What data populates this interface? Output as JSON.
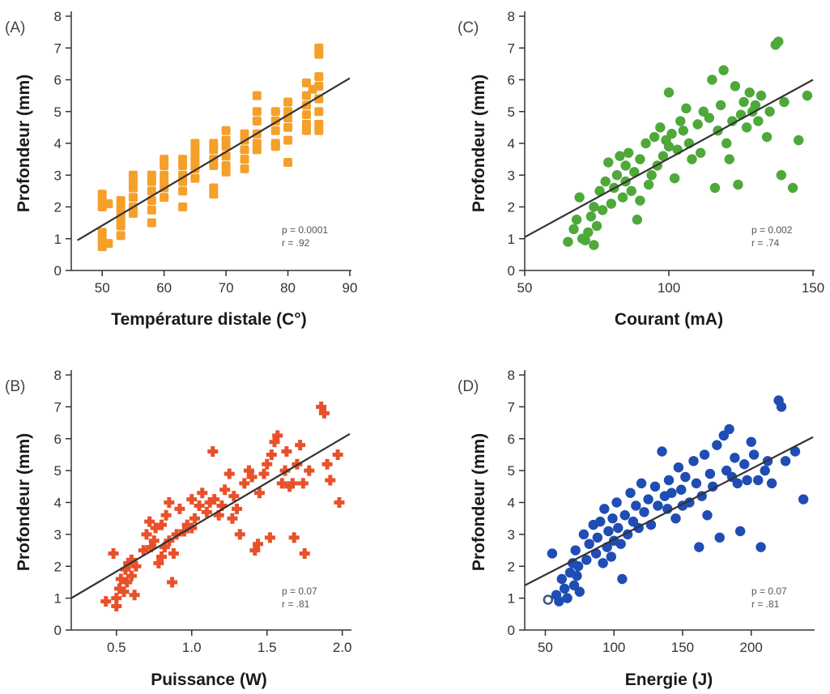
{
  "chart_data": [
    {
      "panel": "(A)",
      "type": "scatter",
      "marker": "square",
      "color": "#f5a02a",
      "xlabel": "Température distale (C°)",
      "ylabel": "Profondeur (mm)",
      "xlim": [
        45,
        90
      ],
      "ylim": [
        0,
        8
      ],
      "xticks": [
        50,
        60,
        70,
        80,
        90
      ],
      "yticks": [
        0,
        1,
        2,
        3,
        4,
        5,
        6,
        7,
        8
      ],
      "stats": [
        "p = 0.0001",
        "r = .92"
      ],
      "fit": {
        "x": [
          46,
          90
        ],
        "y": [
          0.95,
          6.05
        ]
      },
      "points": [
        [
          50,
          0.75
        ],
        [
          50,
          1.0
        ],
        [
          50,
          1.2
        ],
        [
          50,
          2.0
        ],
        [
          50,
          2.2
        ],
        [
          50,
          2.4
        ],
        [
          51,
          0.85
        ],
        [
          51,
          2.1
        ],
        [
          53,
          1.4
        ],
        [
          53,
          1.6
        ],
        [
          53,
          1.8
        ],
        [
          53,
          2.0
        ],
        [
          53,
          2.2
        ],
        [
          53,
          1.1
        ],
        [
          55,
          2.0
        ],
        [
          55,
          2.3
        ],
        [
          55,
          2.6
        ],
        [
          55,
          2.8
        ],
        [
          55,
          3.0
        ],
        [
          55,
          1.8
        ],
        [
          58,
          1.5
        ],
        [
          58,
          1.9
        ],
        [
          58,
          2.2
        ],
        [
          58,
          2.5
        ],
        [
          58,
          2.8
        ],
        [
          58,
          3.0
        ],
        [
          60,
          2.3
        ],
        [
          60,
          2.6
        ],
        [
          60,
          2.8
        ],
        [
          60,
          3.0
        ],
        [
          60,
          3.3
        ],
        [
          60,
          3.5
        ],
        [
          63,
          2.5
        ],
        [
          63,
          2.8
        ],
        [
          63,
          3.0
        ],
        [
          63,
          3.3
        ],
        [
          63,
          3.5
        ],
        [
          63,
          2.0
        ],
        [
          65,
          2.9
        ],
        [
          65,
          3.2
        ],
        [
          65,
          3.4
        ],
        [
          65,
          3.6
        ],
        [
          65,
          3.8
        ],
        [
          65,
          4.0
        ],
        [
          68,
          2.4
        ],
        [
          68,
          2.6
        ],
        [
          68,
          3.3
        ],
        [
          68,
          3.5
        ],
        [
          68,
          3.8
        ],
        [
          68,
          4.0
        ],
        [
          70,
          3.3
        ],
        [
          70,
          3.6
        ],
        [
          70,
          3.9
        ],
        [
          70,
          4.1
        ],
        [
          70,
          4.4
        ],
        [
          70,
          3.1
        ],
        [
          73,
          3.5
        ],
        [
          73,
          3.8
        ],
        [
          73,
          4.1
        ],
        [
          73,
          4.3
        ],
        [
          73,
          3.2
        ],
        [
          75,
          3.8
        ],
        [
          75,
          4.0
        ],
        [
          75,
          4.3
        ],
        [
          75,
          4.7
        ],
        [
          75,
          5.0
        ],
        [
          75,
          5.5
        ],
        [
          78,
          4.0
        ],
        [
          78,
          4.4
        ],
        [
          78,
          4.7
        ],
        [
          78,
          5.0
        ],
        [
          78,
          3.9
        ],
        [
          80,
          3.4
        ],
        [
          80,
          4.5
        ],
        [
          80,
          4.8
        ],
        [
          80,
          5.0
        ],
        [
          80,
          5.3
        ],
        [
          80,
          4.1
        ],
        [
          83,
          4.6
        ],
        [
          83,
          4.9
        ],
        [
          83,
          5.2
        ],
        [
          83,
          5.5
        ],
        [
          83,
          5.9
        ],
        [
          83,
          4.4
        ],
        [
          85,
          4.4
        ],
        [
          85,
          4.6
        ],
        [
          85,
          5.0
        ],
        [
          85,
          5.4
        ],
        [
          85,
          5.8
        ],
        [
          85,
          6.1
        ],
        [
          85,
          6.8
        ],
        [
          85,
          7.0
        ],
        [
          84,
          5.7
        ]
      ]
    },
    {
      "panel": "(B)",
      "type": "scatter",
      "marker": "plus",
      "color": "#e8512a",
      "xlabel": "Puissance (W)",
      "ylabel": "Profondeur (mm)",
      "xlim": [
        0.2,
        2.05
      ],
      "ylim": [
        0,
        8
      ],
      "xticks": [
        0.5,
        1.0,
        1.5,
        2.0
      ],
      "xtick_labels": [
        "0.5",
        "1.0",
        "1.5",
        "2.0"
      ],
      "yticks": [
        0,
        1,
        2,
        3,
        4,
        5,
        6,
        7,
        8
      ],
      "stats": [
        "p = 0.07",
        "r = .81"
      ],
      "fit": {
        "x": [
          0.2,
          2.05
        ],
        "y": [
          1.0,
          6.15
        ]
      },
      "points": [
        [
          0.43,
          0.9
        ],
        [
          0.48,
          2.4
        ],
        [
          0.5,
          1.0
        ],
        [
          0.5,
          0.75
        ],
        [
          0.52,
          1.3
        ],
        [
          0.53,
          1.6
        ],
        [
          0.55,
          1.2
        ],
        [
          0.56,
          1.9
        ],
        [
          0.57,
          1.5
        ],
        [
          0.58,
          2.1
        ],
        [
          0.6,
          2.2
        ],
        [
          0.6,
          1.7
        ],
        [
          0.62,
          1.1
        ],
        [
          0.63,
          2.0
        ],
        [
          0.68,
          2.5
        ],
        [
          0.7,
          3.0
        ],
        [
          0.72,
          3.4
        ],
        [
          0.73,
          2.6
        ],
        [
          0.75,
          2.8
        ],
        [
          0.76,
          3.2
        ],
        [
          0.78,
          2.1
        ],
        [
          0.8,
          2.3
        ],
        [
          0.8,
          3.3
        ],
        [
          0.82,
          2.6
        ],
        [
          0.83,
          3.6
        ],
        [
          0.85,
          4.0
        ],
        [
          0.85,
          2.8
        ],
        [
          0.87,
          1.5
        ],
        [
          0.88,
          2.4
        ],
        [
          0.9,
          3.0
        ],
        [
          0.92,
          3.8
        ],
        [
          0.95,
          3.1
        ],
        [
          0.97,
          3.3
        ],
        [
          1.0,
          4.1
        ],
        [
          1.0,
          3.2
        ],
        [
          1.02,
          3.5
        ],
        [
          1.05,
          3.9
        ],
        [
          1.07,
          4.3
        ],
        [
          1.1,
          3.7
        ],
        [
          1.12,
          4.0
        ],
        [
          1.14,
          5.6
        ],
        [
          1.15,
          4.1
        ],
        [
          1.18,
          3.6
        ],
        [
          1.2,
          3.9
        ],
        [
          1.22,
          4.4
        ],
        [
          1.25,
          4.9
        ],
        [
          1.27,
          3.5
        ],
        [
          1.28,
          4.2
        ],
        [
          1.3,
          3.8
        ],
        [
          1.32,
          3.0
        ],
        [
          1.35,
          4.6
        ],
        [
          1.38,
          5.0
        ],
        [
          1.4,
          4.8
        ],
        [
          1.42,
          2.5
        ],
        [
          1.44,
          2.7
        ],
        [
          1.45,
          4.3
        ],
        [
          1.48,
          4.9
        ],
        [
          1.5,
          5.2
        ],
        [
          1.52,
          2.9
        ],
        [
          1.53,
          5.5
        ],
        [
          1.55,
          5.9
        ],
        [
          1.57,
          6.1
        ],
        [
          1.6,
          4.6
        ],
        [
          1.62,
          5.0
        ],
        [
          1.63,
          5.6
        ],
        [
          1.65,
          4.5
        ],
        [
          1.67,
          4.6
        ],
        [
          1.68,
          2.9
        ],
        [
          1.7,
          5.2
        ],
        [
          1.72,
          5.8
        ],
        [
          1.74,
          4.6
        ],
        [
          1.75,
          2.4
        ],
        [
          1.78,
          5.0
        ],
        [
          1.86,
          7.0
        ],
        [
          1.88,
          6.8
        ],
        [
          1.9,
          5.2
        ],
        [
          1.92,
          4.7
        ],
        [
          1.97,
          5.5
        ],
        [
          1.98,
          4.0
        ]
      ]
    },
    {
      "panel": "(C)",
      "type": "scatter",
      "marker": "circle",
      "color": "#4ea83a",
      "xlabel": "Courant (mA)",
      "ylabel": "Profondeur (mm)",
      "xlim": [
        50,
        150
      ],
      "ylim": [
        0,
        8
      ],
      "xticks": [
        50,
        100,
        150
      ],
      "yticks": [
        0,
        1,
        2,
        3,
        4,
        5,
        6,
        7,
        8
      ],
      "stats": [
        "p = 0.002",
        "r = .74"
      ],
      "fit": {
        "x": [
          50,
          150
        ],
        "y": [
          1.05,
          6.0
        ]
      },
      "points": [
        [
          65,
          0.9
        ],
        [
          67,
          1.3
        ],
        [
          68,
          1.6
        ],
        [
          69,
          2.3
        ],
        [
          70,
          1.0
        ],
        [
          71,
          0.95
        ],
        [
          72,
          1.2
        ],
        [
          73,
          1.7
        ],
        [
          74,
          0.8
        ],
        [
          74,
          2.0
        ],
        [
          75,
          1.4
        ],
        [
          76,
          2.5
        ],
        [
          77,
          1.9
        ],
        [
          78,
          2.8
        ],
        [
          79,
          3.4
        ],
        [
          80,
          2.1
        ],
        [
          81,
          2.6
        ],
        [
          82,
          3.0
        ],
        [
          83,
          3.6
        ],
        [
          84,
          2.3
        ],
        [
          85,
          3.3
        ],
        [
          85,
          2.8
        ],
        [
          86,
          3.7
        ],
        [
          87,
          2.5
        ],
        [
          88,
          3.1
        ],
        [
          89,
          1.6
        ],
        [
          90,
          2.2
        ],
        [
          90,
          3.5
        ],
        [
          92,
          4.0
        ],
        [
          93,
          2.7
        ],
        [
          94,
          3.0
        ],
        [
          95,
          4.2
        ],
        [
          96,
          3.3
        ],
        [
          97,
          4.5
        ],
        [
          98,
          3.6
        ],
        [
          99,
          4.1
        ],
        [
          100,
          5.6
        ],
        [
          100,
          3.9
        ],
        [
          101,
          4.3
        ],
        [
          102,
          2.9
        ],
        [
          103,
          3.8
        ],
        [
          104,
          4.7
        ],
        [
          105,
          4.4
        ],
        [
          106,
          5.1
        ],
        [
          107,
          4.0
        ],
        [
          108,
          3.5
        ],
        [
          110,
          4.6
        ],
        [
          111,
          3.7
        ],
        [
          112,
          5.0
        ],
        [
          114,
          4.8
        ],
        [
          115,
          6.0
        ],
        [
          116,
          2.6
        ],
        [
          117,
          4.4
        ],
        [
          118,
          5.2
        ],
        [
          119,
          6.3
        ],
        [
          120,
          4.0
        ],
        [
          121,
          3.5
        ],
        [
          122,
          4.7
        ],
        [
          123,
          5.8
        ],
        [
          124,
          2.7
        ],
        [
          125,
          4.9
        ],
        [
          126,
          5.3
        ],
        [
          127,
          4.5
        ],
        [
          128,
          5.6
        ],
        [
          129,
          5.0
        ],
        [
          130,
          5.2
        ],
        [
          131,
          4.7
        ],
        [
          132,
          5.5
        ],
        [
          134,
          4.2
        ],
        [
          135,
          5.0
        ],
        [
          137,
          7.1
        ],
        [
          138,
          7.2
        ],
        [
          139,
          3.0
        ],
        [
          140,
          5.3
        ],
        [
          143,
          2.6
        ],
        [
          145,
          4.1
        ],
        [
          148,
          5.5
        ]
      ]
    },
    {
      "panel": "(D)",
      "type": "scatter",
      "marker": "circle",
      "color": "#1f4db3",
      "xlabel": "Energie (J)",
      "ylabel": "Profondeur (mm)",
      "xlim": [
        35,
        245
      ],
      "ylim": [
        0,
        8
      ],
      "xticks": [
        50,
        100,
        150,
        200
      ],
      "yticks": [
        0,
        1,
        2,
        3,
        4,
        5,
        6,
        7,
        8
      ],
      "stats": [
        "p = 0.07",
        "r = .81"
      ],
      "fit": {
        "x": [
          35,
          245
        ],
        "y": [
          1.4,
          6.05
        ]
      },
      "points": [
        [
          52,
          0.95
        ],
        [
          55,
          2.4
        ],
        [
          58,
          1.1
        ],
        [
          60,
          0.9
        ],
        [
          62,
          1.6
        ],
        [
          64,
          1.3
        ],
        [
          66,
          1.0
        ],
        [
          68,
          1.8
        ],
        [
          70,
          2.1
        ],
        [
          71,
          1.4
        ],
        [
          72,
          2.5
        ],
        [
          73,
          1.7
        ],
        [
          74,
          2.0
        ],
        [
          75,
          1.2
        ],
        [
          78,
          3.0
        ],
        [
          80,
          2.2
        ],
        [
          82,
          2.7
        ],
        [
          85,
          3.3
        ],
        [
          87,
          2.4
        ],
        [
          88,
          2.9
        ],
        [
          90,
          3.4
        ],
        [
          92,
          2.1
        ],
        [
          93,
          3.8
        ],
        [
          95,
          2.6
        ],
        [
          96,
          3.1
        ],
        [
          98,
          2.3
        ],
        [
          99,
          3.5
        ],
        [
          100,
          2.8
        ],
        [
          102,
          4.0
        ],
        [
          103,
          3.2
        ],
        [
          105,
          2.7
        ],
        [
          106,
          1.6
        ],
        [
          108,
          3.6
        ],
        [
          110,
          3.0
        ],
        [
          112,
          4.3
        ],
        [
          114,
          3.4
        ],
        [
          116,
          3.9
        ],
        [
          118,
          3.2
        ],
        [
          120,
          4.6
        ],
        [
          122,
          3.7
        ],
        [
          125,
          4.1
        ],
        [
          127,
          3.3
        ],
        [
          130,
          4.5
        ],
        [
          132,
          3.9
        ],
        [
          135,
          5.6
        ],
        [
          137,
          4.2
        ],
        [
          139,
          3.8
        ],
        [
          140,
          4.7
        ],
        [
          142,
          4.3
        ],
        [
          145,
          3.5
        ],
        [
          147,
          5.1
        ],
        [
          149,
          4.4
        ],
        [
          150,
          3.9
        ],
        [
          152,
          4.8
        ],
        [
          155,
          4.0
        ],
        [
          158,
          5.3
        ],
        [
          160,
          4.6
        ],
        [
          162,
          2.6
        ],
        [
          164,
          4.2
        ],
        [
          166,
          5.5
        ],
        [
          168,
          3.6
        ],
        [
          170,
          4.9
        ],
        [
          172,
          4.5
        ],
        [
          175,
          5.8
        ],
        [
          177,
          2.9
        ],
        [
          180,
          6.1
        ],
        [
          182,
          5.0
        ],
        [
          184,
          6.3
        ],
        [
          186,
          4.8
        ],
        [
          188,
          5.4
        ],
        [
          190,
          4.6
        ],
        [
          192,
          3.1
        ],
        [
          195,
          5.2
        ],
        [
          197,
          4.7
        ],
        [
          200,
          5.9
        ],
        [
          202,
          5.5
        ],
        [
          205,
          4.7
        ],
        [
          207,
          2.6
        ],
        [
          210,
          5.0
        ],
        [
          212,
          5.3
        ],
        [
          215,
          4.6
        ],
        [
          220,
          7.2
        ],
        [
          222,
          7.0
        ],
        [
          225,
          5.3
        ],
        [
          232,
          5.6
        ],
        [
          238,
          4.1
        ]
      ]
    }
  ]
}
